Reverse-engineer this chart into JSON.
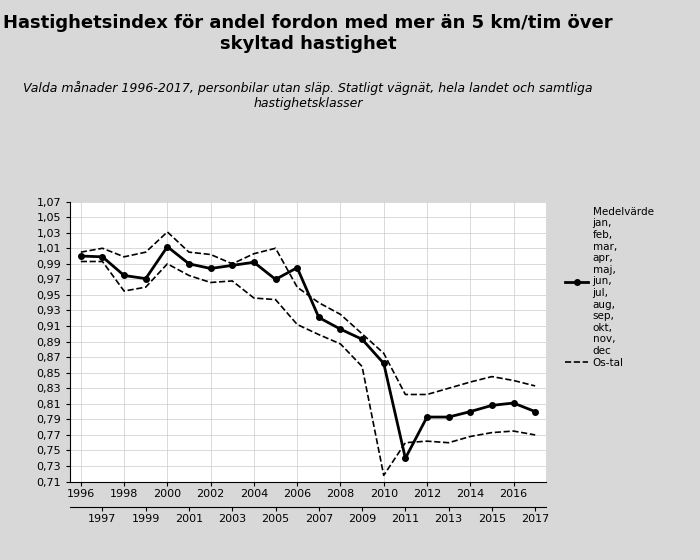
{
  "title": "Hastighetsindex för andel fordon med mer än 5 km/tim över\nskyltad hastighet",
  "subtitle": "Valda månader 1996-2017, personbilar utan släp. Statligt vägnät, hela landet och samtliga\nhastighetsklasser",
  "title_fontsize": 13,
  "subtitle_fontsize": 9,
  "background_color": "#d8d8d8",
  "plot_bg_color": "#ffffff",
  "years_main": [
    1996,
    1997,
    1998,
    1999,
    2000,
    2001,
    2002,
    2003,
    2004,
    2005,
    2006,
    2007,
    2008,
    2009,
    2010,
    2011,
    2012,
    2013,
    2014,
    2015,
    2016,
    2017
  ],
  "values_main": [
    1.0,
    0.999,
    0.975,
    0.971,
    1.012,
    0.99,
    0.984,
    0.988,
    0.992,
    0.97,
    0.985,
    0.921,
    0.906,
    0.893,
    0.862,
    0.74,
    0.793,
    0.793,
    0.8,
    0.808,
    0.811,
    0.8
  ],
  "years_upper": [
    1996,
    1997,
    1998,
    1999,
    2000,
    2001,
    2002,
    2003,
    2004,
    2005,
    2006,
    2007,
    2008,
    2009,
    2010,
    2011,
    2012,
    2013,
    2014,
    2015,
    2016,
    2017
  ],
  "values_upper": [
    1.005,
    1.01,
    0.999,
    1.005,
    1.031,
    1.005,
    1.002,
    0.99,
    1.003,
    1.01,
    0.96,
    0.94,
    0.925,
    0.9,
    0.875,
    0.822,
    0.822,
    0.83,
    0.838,
    0.845,
    0.84,
    0.833
  ],
  "years_lower": [
    1996,
    1997,
    1998,
    1999,
    2000,
    2001,
    2002,
    2003,
    2004,
    2005,
    2006,
    2007,
    2008,
    2009,
    2010,
    2011,
    2012,
    2013,
    2014,
    2015,
    2016,
    2017
  ],
  "values_lower": [
    0.993,
    0.993,
    0.955,
    0.96,
    0.99,
    0.975,
    0.966,
    0.968,
    0.946,
    0.944,
    0.912,
    0.899,
    0.887,
    0.858,
    0.718,
    0.76,
    0.762,
    0.76,
    0.768,
    0.773,
    0.775,
    0.77
  ],
  "xlim": [
    1995.5,
    2017.5
  ],
  "ylim": [
    0.71,
    1.07
  ],
  "yticks": [
    0.71,
    0.73,
    0.75,
    0.77,
    0.79,
    0.81,
    0.83,
    0.85,
    0.87,
    0.89,
    0.91,
    0.93,
    0.95,
    0.97,
    0.99,
    1.01,
    1.03,
    1.05,
    1.07
  ],
  "xticks_top": [
    1996,
    1998,
    2000,
    2002,
    2004,
    2006,
    2008,
    2010,
    2012,
    2014,
    2016
  ],
  "xticks_bottom": [
    1997,
    1999,
    2001,
    2003,
    2005,
    2007,
    2009,
    2011,
    2013,
    2015,
    2017
  ],
  "main_color": "#000000",
  "dashed_color": "#000000",
  "legend_label_main": "Medelvärde\njan,\nfeb,\nmar,\napr,\nmaj,\njun,\njul,\naug,\nsep,\nokt,\nnov,\ndec",
  "legend_label_dashed": "Os-tal"
}
